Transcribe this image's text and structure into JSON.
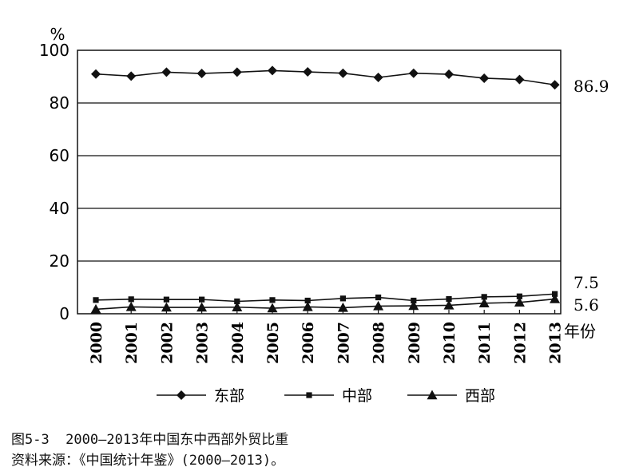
{
  "chart_data": {
    "type": "line",
    "yunit": "%",
    "xunit": "年份",
    "ylim": [
      0,
      100
    ],
    "yticks": [
      0,
      20,
      40,
      60,
      80,
      100
    ],
    "grid": "horizontal",
    "legend_position": "bottom",
    "x": [
      "2000",
      "2001",
      "2002",
      "2003",
      "2004",
      "2005",
      "2006",
      "2007",
      "2008",
      "2009",
      "2010",
      "2011",
      "2012",
      "2013"
    ],
    "series": [
      {
        "name": "东部",
        "marker": "diamond",
        "values": [
          91.0,
          90.2,
          91.7,
          91.2,
          91.7,
          92.3,
          91.8,
          91.3,
          89.7,
          91.3,
          90.9,
          89.4,
          88.9,
          86.9
        ]
      },
      {
        "name": "中部",
        "marker": "square",
        "values": [
          5.2,
          5.5,
          5.4,
          5.4,
          4.7,
          5.2,
          5.0,
          5.8,
          6.2,
          5.0,
          5.6,
          6.4,
          6.6,
          7.5
        ]
      },
      {
        "name": "西部",
        "marker": "triangle",
        "values": [
          1.7,
          2.6,
          2.4,
          2.4,
          2.5,
          2.1,
          2.6,
          2.3,
          2.9,
          3.0,
          3.2,
          4.0,
          4.3,
          5.6
        ]
      }
    ],
    "end_labels": [
      "86.9",
      "7.5",
      "5.6"
    ]
  },
  "caption": {
    "line1": "图5-3  2000—2013年中国东中西部外贸比重",
    "line2": "资料来源：《中国统计年鉴》(2000—2013)。"
  }
}
